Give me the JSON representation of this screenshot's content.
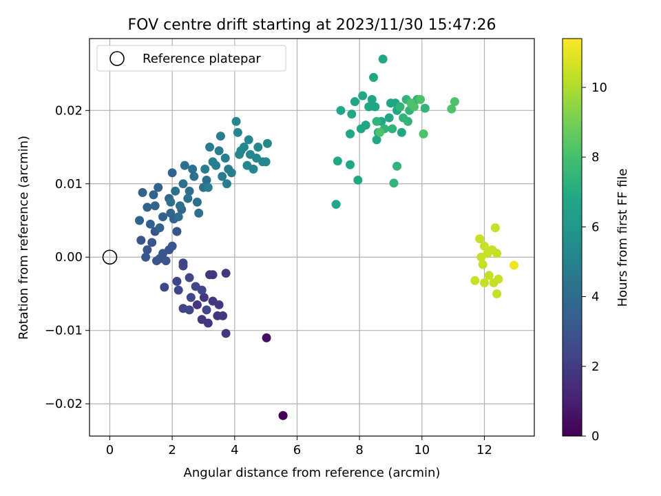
{
  "chart_data": {
    "type": "scatter",
    "title": "FOV centre drift starting at 2023/11/30 15:47:26",
    "xlabel": "Angular distance from reference (arcmin)",
    "ylabel": "Rotation from reference (arcmin)",
    "xlim": [
      -0.65,
      13.6
    ],
    "ylim": [
      -0.0244,
      0.0298
    ],
    "xticks": [
      0,
      2,
      4,
      6,
      8,
      10,
      12
    ],
    "xtick_labels": [
      "0",
      "2",
      "4",
      "6",
      "8",
      "10",
      "12"
    ],
    "yticks": [
      -0.02,
      -0.01,
      0.0,
      0.01,
      0.02
    ],
    "ytick_labels": [
      "−0.02",
      "−0.01",
      "0.00",
      "0.01",
      "0.02"
    ],
    "grid": true,
    "legend": {
      "placement": "upper left",
      "entries": [
        "Reference platepar"
      ]
    },
    "reference_point": {
      "x": 0,
      "y": 0,
      "marker": "open-circle",
      "color": "#000000"
    },
    "colorbar": {
      "label": "Hours from first FF file",
      "colormap": "viridis",
      "range": [
        0,
        11.4
      ],
      "ticks": [
        0,
        2,
        4,
        6,
        8,
        10
      ],
      "tick_labels": [
        "0",
        "2",
        "4",
        "6",
        "8",
        "10"
      ]
    },
    "point_groups": [
      {
        "hours": 0.0,
        "points": [
          [
            5.55,
            -0.0216
          ],
          [
            5.55,
            -0.0216
          ]
        ]
      },
      {
        "hours": 0.5,
        "points": [
          [
            5.02,
            -0.011
          ]
        ]
      },
      {
        "hours": 1.8,
        "points": [
          [
            3.72,
            -0.0104
          ],
          [
            3.45,
            -0.008
          ],
          [
            3.15,
            -0.009
          ],
          [
            3.62,
            -0.008
          ],
          [
            3.3,
            -0.006
          ],
          [
            2.95,
            -0.0085
          ],
          [
            2.8,
            -0.0065
          ],
          [
            3.5,
            -0.0065
          ],
          [
            3.3,
            -0.0024
          ],
          [
            3.2,
            -0.0024
          ],
          [
            3.72,
            -0.0022
          ],
          [
            3.02,
            -0.0055
          ]
        ]
      },
      {
        "hours": 2.4,
        "points": [
          [
            2.35,
            -0.007
          ],
          [
            2.6,
            -0.0055
          ],
          [
            2.2,
            -0.0045
          ],
          [
            2.75,
            -0.004
          ],
          [
            2.55,
            -0.0028
          ],
          [
            2.35,
            -0.0012
          ],
          [
            2.35,
            -0.0008
          ],
          [
            2.15,
            -0.0033
          ],
          [
            1.75,
            -0.0041
          ],
          [
            2.55,
            -0.0072
          ],
          [
            2.95,
            -0.0045
          ],
          [
            3.1,
            -0.0072
          ]
        ]
      },
      {
        "hours": 3.0,
        "points": [
          [
            1.15,
            0.0
          ],
          [
            1.5,
            -0.0005
          ],
          [
            1.7,
            0.0005
          ],
          [
            1.9,
            0.001
          ],
          [
            1.35,
            0.002
          ],
          [
            1.0,
            0.0023
          ],
          [
            1.6,
            -0.0002
          ],
          [
            2.0,
            0.0015
          ],
          [
            1.2,
            0.001
          ],
          [
            1.8,
            -0.0005
          ],
          [
            1.45,
            0.0035
          ],
          [
            2.15,
            0.0035
          ]
        ]
      },
      {
        "hours": 3.6,
        "points": [
          [
            0.95,
            0.005
          ],
          [
            1.3,
            0.0045
          ],
          [
            1.7,
            0.0055
          ],
          [
            2.05,
            0.0052
          ],
          [
            1.45,
            0.007
          ],
          [
            1.2,
            0.0068
          ],
          [
            1.9,
            0.008
          ],
          [
            2.3,
            0.0065
          ],
          [
            1.05,
            0.0088
          ],
          [
            1.55,
            0.0095
          ],
          [
            2.0,
            0.0115
          ],
          [
            1.4,
            0.0085
          ],
          [
            1.95,
            0.006
          ],
          [
            1.6,
            0.004
          ]
        ]
      },
      {
        "hours": 4.2,
        "points": [
          [
            2.1,
            0.009
          ],
          [
            2.5,
            0.008
          ],
          [
            2.8,
            0.0075
          ],
          [
            2.35,
            0.01
          ],
          [
            2.7,
            0.011
          ],
          [
            3.0,
            0.0095
          ],
          [
            2.4,
            0.0125
          ],
          [
            2.65,
            0.012
          ],
          [
            2.25,
            0.007
          ],
          [
            2.85,
            0.006
          ],
          [
            3.1,
            0.0105
          ],
          [
            2.55,
            0.009
          ],
          [
            1.95,
            0.0075
          ],
          [
            2.2,
            0.0055
          ]
        ]
      },
      {
        "hours": 4.8,
        "points": [
          [
            3.2,
            0.015
          ],
          [
            3.5,
            0.0145
          ],
          [
            3.4,
            0.0125
          ],
          [
            3.6,
            0.011
          ],
          [
            3.75,
            0.01
          ],
          [
            3.9,
            0.0115
          ],
          [
            3.3,
            0.013
          ],
          [
            3.05,
            0.012
          ],
          [
            3.7,
            0.0135
          ],
          [
            3.55,
            0.0165
          ],
          [
            3.15,
            0.0095
          ],
          [
            3.8,
            0.012
          ]
        ]
      },
      {
        "hours": 5.2,
        "points": [
          [
            4.05,
            0.0185
          ],
          [
            4.1,
            0.017
          ],
          [
            4.3,
            0.015
          ],
          [
            4.5,
            0.014
          ],
          [
            4.7,
            0.0135
          ],
          [
            5.05,
            0.0155
          ],
          [
            4.9,
            0.013
          ],
          [
            4.4,
            0.0125
          ],
          [
            4.6,
            0.012
          ],
          [
            5.0,
            0.013
          ],
          [
            4.2,
            0.0145
          ],
          [
            4.75,
            0.015
          ],
          [
            4.45,
            0.016
          ],
          [
            4.15,
            0.014
          ]
        ]
      },
      {
        "hours": 6.8,
        "points": [
          [
            7.25,
            0.0072
          ],
          [
            7.95,
            0.0105
          ],
          [
            7.3,
            0.0131
          ],
          [
            7.7,
            0.0126
          ],
          [
            8.05,
            0.0175
          ],
          [
            7.75,
            0.0195
          ],
          [
            8.5,
            0.0205
          ],
          [
            8.95,
            0.019
          ],
          [
            7.4,
            0.02
          ],
          [
            8.2,
            0.018
          ],
          [
            8.6,
            0.017
          ],
          [
            8.4,
            0.0215
          ],
          [
            8.1,
            0.022
          ],
          [
            8.75,
            0.027
          ],
          [
            8.45,
            0.0245
          ],
          [
            9.0,
            0.021
          ],
          [
            8.7,
            0.0185
          ],
          [
            9.2,
            0.02
          ],
          [
            8.3,
            0.0205
          ],
          [
            7.7,
            0.0168
          ],
          [
            8.55,
            0.016
          ],
          [
            9.35,
            0.017
          ],
          [
            7.85,
            0.0212
          ],
          [
            9.15,
            0.021
          ]
        ]
      },
      {
        "hours": 7.4,
        "points": [
          [
            8.55,
            0.0185
          ],
          [
            8.8,
            0.0175
          ],
          [
            9.05,
            0.0175
          ],
          [
            9.4,
            0.019
          ],
          [
            9.6,
            0.02
          ],
          [
            9.1,
            0.0101
          ],
          [
            9.2,
            0.0124
          ],
          [
            9.3,
            0.0205
          ],
          [
            9.5,
            0.0215
          ],
          [
            9.55,
            0.0185
          ],
          [
            10.1,
            0.0203
          ],
          [
            9.85,
            0.0215
          ]
        ]
      },
      {
        "hours": 8.2,
        "points": [
          [
            9.65,
            0.021
          ],
          [
            9.95,
            0.0215
          ],
          [
            10.05,
            0.0168
          ],
          [
            10.95,
            0.0202
          ],
          [
            11.05,
            0.0212
          ],
          [
            8.65,
            0.017
          ],
          [
            9.75,
            0.0205
          ]
        ]
      },
      {
        "hours": 10.4,
        "points": [
          [
            11.85,
            0.0025
          ],
          [
            12.0,
            0.0015
          ],
          [
            12.1,
            0.0005
          ],
          [
            11.95,
            -0.001
          ],
          [
            12.15,
            -0.0025
          ],
          [
            12.3,
            -0.0035
          ],
          [
            12.4,
            -0.005
          ],
          [
            11.7,
            -0.0032
          ],
          [
            11.9,
            0.0
          ],
          [
            12.35,
            0.004
          ],
          [
            12.25,
            0.001
          ],
          [
            12.4,
            0.0005
          ],
          [
            12.0,
            -0.0035
          ],
          [
            12.45,
            -0.003
          ]
        ]
      },
      {
        "hours": 11.1,
        "points": [
          [
            12.95,
            -0.0011
          ]
        ]
      }
    ]
  }
}
